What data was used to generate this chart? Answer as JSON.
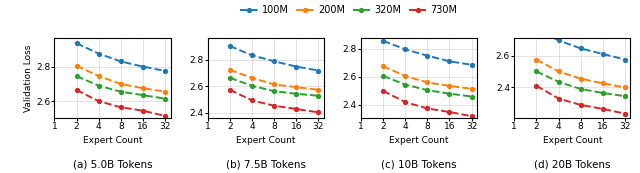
{
  "x_values": [
    2,
    4,
    8,
    16,
    32
  ],
  "x_ticks": [
    1,
    2,
    4,
    8,
    16,
    32
  ],
  "x_label": "Expert Count",
  "y_label": "Validation Loss",
  "colors": {
    "100M": "#1f77b4",
    "200M": "#ff7f0e",
    "320M": "#2ca02c",
    "730M": "#d62728"
  },
  "legend_labels": [
    "100M",
    "200M",
    "320M",
    "730M"
  ],
  "subplots": [
    {
      "title": "(a) 5.0B Tokens",
      "ylim": [
        2.505,
        2.965
      ],
      "yticks": [
        2.6,
        2.8
      ],
      "show_yticks_right": false,
      "data": {
        "100M": [
          2.935,
          2.875,
          2.83,
          2.8,
          2.775
        ],
        "200M": [
          2.805,
          2.745,
          2.7,
          2.675,
          2.655
        ],
        "320M": [
          2.745,
          2.69,
          2.655,
          2.635,
          2.615
        ],
        "730M": [
          2.665,
          2.6,
          2.565,
          2.545,
          2.515
        ]
      }
    },
    {
      "title": "(b) 7.5B Tokens",
      "ylim": [
        2.365,
        2.965
      ],
      "yticks": [
        2.4,
        2.6,
        2.8
      ],
      "show_yticks_right": true,
      "data": {
        "100M": [
          2.905,
          2.835,
          2.79,
          2.75,
          2.72
        ],
        "200M": [
          2.725,
          2.665,
          2.615,
          2.595,
          2.575
        ],
        "320M": [
          2.665,
          2.605,
          2.565,
          2.545,
          2.53
        ],
        "730M": [
          2.575,
          2.495,
          2.455,
          2.43,
          2.405
        ]
      }
    },
    {
      "title": "(c) 10B Tokens",
      "ylim": [
        2.31,
        2.875
      ],
      "yticks": [
        2.4,
        2.6,
        2.8
      ],
      "show_yticks_right": true,
      "data": {
        "100M": [
          2.855,
          2.795,
          2.75,
          2.71,
          2.685
        ],
        "200M": [
          2.675,
          2.605,
          2.56,
          2.535,
          2.515
        ],
        "320M": [
          2.605,
          2.545,
          2.505,
          2.48,
          2.46
        ],
        "730M": [
          2.5,
          2.42,
          2.375,
          2.35,
          2.32
        ]
      }
    },
    {
      "title": "(d) 20B Tokens",
      "ylim": [
        2.21,
        2.71
      ],
      "yticks": [
        2.4,
        2.6
      ],
      "show_yticks_right": false,
      "data": {
        "100M": [
          2.77,
          2.695,
          2.645,
          2.61,
          2.575
        ],
        "200M": [
          2.575,
          2.5,
          2.455,
          2.425,
          2.4
        ],
        "320M": [
          2.5,
          2.435,
          2.39,
          2.365,
          2.345
        ],
        "730M": [
          2.41,
          2.33,
          2.29,
          2.265,
          2.235
        ]
      }
    }
  ]
}
